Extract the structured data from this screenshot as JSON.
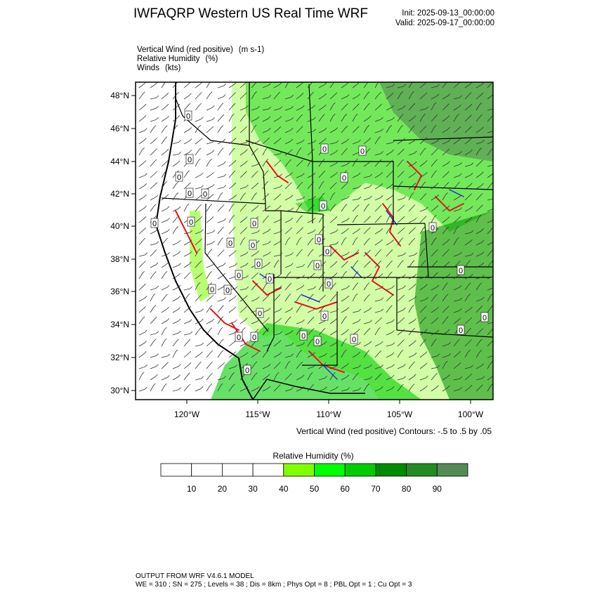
{
  "header": {
    "title": "IWFAQRP Western US Real Time WRF",
    "init": "Init: 2025-09-13_00:00:00",
    "valid": "Valid: 2025-09-17_00:00:00"
  },
  "fields": [
    {
      "name": "Vertical Wind (red positive)",
      "unit": "(m s-1)"
    },
    {
      "name": "Relative Humidity",
      "unit": "(%)"
    },
    {
      "name": "Winds",
      "unit": "(kts)"
    }
  ],
  "map": {
    "lat_labels": [
      "48°N",
      "46°N",
      "44°N",
      "42°N",
      "40°N",
      "38°N",
      "36°N",
      "34°N",
      "32°N",
      "30°N"
    ],
    "lon_labels": [
      "120°W",
      "115°W",
      "110°W",
      "105°W",
      "100°W"
    ],
    "contour_note": "Vertical Wind (red positive) Contours: -.5 to .5 by .05",
    "contour_label": "0"
  },
  "colorbar": {
    "title": "Relative Humidity  (%)",
    "ticks": [
      "10",
      "20",
      "30",
      "40",
      "50",
      "60",
      "70",
      "80",
      "90"
    ],
    "colors": [
      "#ffffff",
      "#ffffff",
      "#ffffff",
      "#ffffff",
      "#7fff00",
      "#00ff00",
      "#00cd00",
      "#008b00",
      "#228b22",
      "#548b54"
    ]
  },
  "footer": {
    "line1": "OUTPUT FROM WRF V4.6.1 MODEL",
    "line2": "WE = 310 ; SN = 275 ; Levels = 38 ; Dis = 8km ; Phys Opt = 8 ; PBL Opt = 1 ; Cu Opt = 3"
  },
  "colors": {
    "updraft": "#e8141e",
    "downdraft": "#1e32dc",
    "humid_light": "#7fff00",
    "humid_mid": "#00cd00",
    "humid_dark": "#008b00",
    "humid_darkest": "#548b54"
  }
}
